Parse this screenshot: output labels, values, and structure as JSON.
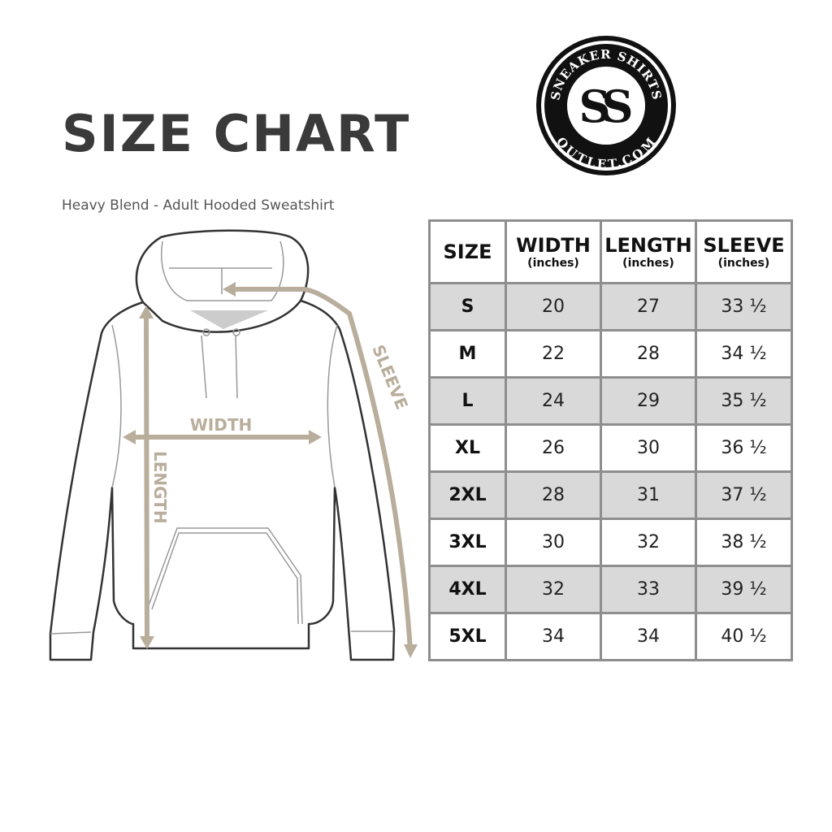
{
  "title": "SIZE CHART",
  "subtitle": "Heavy Blend - Adult Hooded Sweatshirt",
  "logo": {
    "top_text": "SNEAKER SHIRTS",
    "bottom_text": "OUTLET.COM",
    "monogram": "SS"
  },
  "diagram": {
    "width_label": "WIDTH",
    "length_label": "LENGTH",
    "sleeve_label": "SLEEVE",
    "measure_color": "#b9ad9b"
  },
  "table": {
    "headers": [
      {
        "label": "SIZE",
        "unit": ""
      },
      {
        "label": "WIDTH",
        "unit": "(inches)"
      },
      {
        "label": "LENGTH",
        "unit": "(inches)"
      },
      {
        "label": "SLEEVE",
        "unit": "(inches)"
      }
    ],
    "rows": [
      [
        "S",
        "20",
        "27",
        "33 ½"
      ],
      [
        "M",
        "22",
        "28",
        "34 ½"
      ],
      [
        "L",
        "24",
        "29",
        "35 ½"
      ],
      [
        "XL",
        "26",
        "30",
        "36 ½"
      ],
      [
        "2XL",
        "28",
        "31",
        "37 ½"
      ],
      [
        "3XL",
        "30",
        "32",
        "38 ½"
      ],
      [
        "4XL",
        "32",
        "33",
        "39 ½"
      ],
      [
        "5XL",
        "34",
        "34",
        "40 ½"
      ]
    ],
    "stripe_color": "#d9d9d9"
  }
}
